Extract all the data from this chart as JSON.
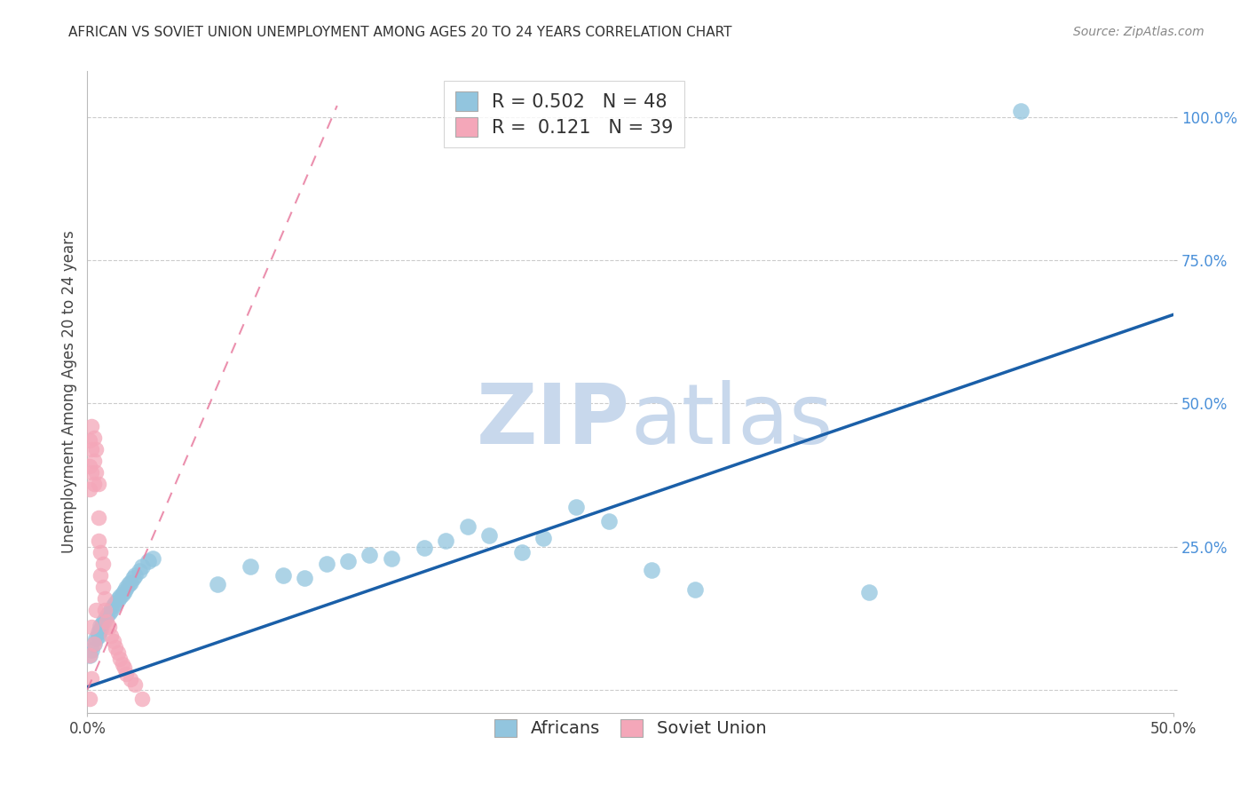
{
  "title": "AFRICAN VS SOVIET UNION UNEMPLOYMENT AMONG AGES 20 TO 24 YEARS CORRELATION CHART",
  "source": "Source: ZipAtlas.com",
  "ylabel": "Unemployment Among Ages 20 to 24 years",
  "xlim": [
    0.0,
    0.5
  ],
  "ylim": [
    -0.04,
    1.08
  ],
  "africans_R": 0.502,
  "africans_N": 48,
  "soviet_R": 0.121,
  "soviet_N": 39,
  "africans_color": "#92C5DE",
  "soviet_color": "#F4A7B9",
  "africans_line_color": "#1A5FA8",
  "soviet_line_color": "#E87DA0",
  "watermark_zip_color": "#C8D8EC",
  "watermark_atlas_color": "#C8D8EC",
  "africans_line_x0": 0.0,
  "africans_line_y0": 0.005,
  "africans_line_x1": 0.5,
  "africans_line_y1": 0.655,
  "soviet_line_x0": 0.0,
  "soviet_line_y0": 0.0,
  "soviet_line_x1": 0.115,
  "soviet_line_y1": 1.02,
  "africans_scatter_x": [
    0.001,
    0.002,
    0.003,
    0.004,
    0.005,
    0.005,
    0.006,
    0.006,
    0.007,
    0.008,
    0.009,
    0.01,
    0.011,
    0.012,
    0.013,
    0.014,
    0.015,
    0.016,
    0.017,
    0.018,
    0.019,
    0.02,
    0.021,
    0.022,
    0.024,
    0.025,
    0.028,
    0.03,
    0.06,
    0.075,
    0.09,
    0.1,
    0.11,
    0.12,
    0.13,
    0.14,
    0.155,
    0.165,
    0.175,
    0.185,
    0.2,
    0.21,
    0.225,
    0.24,
    0.26,
    0.28,
    0.36,
    0.43
  ],
  "africans_scatter_y": [
    0.06,
    0.07,
    0.08,
    0.09,
    0.095,
    0.1,
    0.105,
    0.112,
    0.118,
    0.122,
    0.128,
    0.135,
    0.14,
    0.148,
    0.152,
    0.158,
    0.162,
    0.168,
    0.172,
    0.178,
    0.185,
    0.188,
    0.195,
    0.2,
    0.208,
    0.215,
    0.225,
    0.23,
    0.185,
    0.215,
    0.2,
    0.195,
    0.22,
    0.225,
    0.235,
    0.23,
    0.248,
    0.26,
    0.285,
    0.27,
    0.24,
    0.265,
    0.32,
    0.295,
    0.21,
    0.175,
    0.17,
    1.01
  ],
  "soviet_scatter_x": [
    0.001,
    0.001,
    0.001,
    0.001,
    0.001,
    0.002,
    0.002,
    0.002,
    0.002,
    0.002,
    0.003,
    0.003,
    0.003,
    0.003,
    0.004,
    0.004,
    0.004,
    0.005,
    0.005,
    0.005,
    0.006,
    0.006,
    0.007,
    0.007,
    0.008,
    0.008,
    0.009,
    0.01,
    0.011,
    0.012,
    0.013,
    0.014,
    0.015,
    0.016,
    0.017,
    0.018,
    0.02,
    0.022,
    0.025
  ],
  "soviet_scatter_y": [
    0.435,
    0.39,
    0.35,
    0.06,
    -0.015,
    0.46,
    0.42,
    0.38,
    0.11,
    0.02,
    0.44,
    0.4,
    0.36,
    0.08,
    0.42,
    0.38,
    0.14,
    0.36,
    0.3,
    0.26,
    0.24,
    0.2,
    0.22,
    0.18,
    0.16,
    0.14,
    0.12,
    0.11,
    0.095,
    0.085,
    0.075,
    0.065,
    0.055,
    0.045,
    0.038,
    0.028,
    0.018,
    0.01,
    -0.015
  ]
}
